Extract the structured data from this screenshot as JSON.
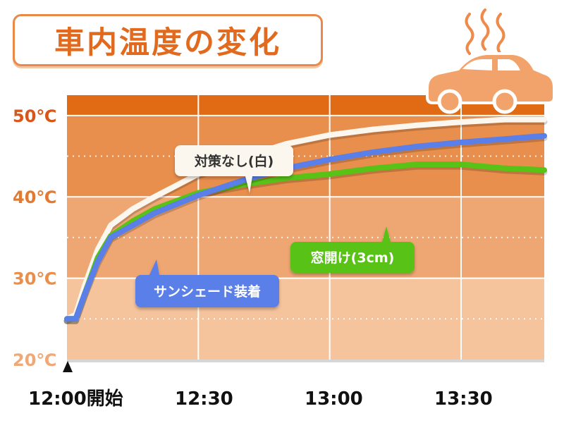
{
  "title": "車内温度の変化",
  "chart_data": {
    "type": "line",
    "ylim": [
      20,
      52.5
    ],
    "y_ticks": [
      20,
      30,
      40,
      50
    ],
    "y_tick_labels": [
      "20℃",
      "30℃",
      "40℃",
      "50℃"
    ],
    "y_band_colors": [
      "#f5c49d",
      "#eea672",
      "#e98f4d",
      "#e16a14"
    ],
    "x_ticks": [
      0,
      30,
      60,
      90
    ],
    "x_tick_labels": [
      "12:00開始",
      "12:30",
      "13:00",
      "13:30"
    ],
    "xlim": [
      0,
      109
    ],
    "grid": true,
    "series": [
      {
        "name": "対策なし(白)",
        "color": "#fbf7ee",
        "x": [
          0,
          2,
          4,
          7,
          10,
          15,
          20,
          30,
          40,
          50,
          60,
          70,
          80,
          90,
          100,
          109
        ],
        "y": [
          25,
          25.5,
          29,
          33.5,
          36.5,
          38.5,
          40,
          42.8,
          44.8,
          46.5,
          47.6,
          48.3,
          48.8,
          49.2,
          49.5,
          49.5
        ]
      },
      {
        "name": "サンシェード装着",
        "color": "#5a7fe8",
        "x": [
          0,
          2,
          4,
          7,
          10,
          15,
          20,
          30,
          40,
          50,
          60,
          70,
          80,
          90,
          100,
          109
        ],
        "y": [
          25,
          25,
          28,
          32,
          35,
          36.5,
          38,
          40.2,
          42,
          43.5,
          44.6,
          45.5,
          46.2,
          46.7,
          47.1,
          47.5
        ]
      },
      {
        "name": "窓開け(3cm)",
        "color": "#58c217",
        "x": [
          0,
          2,
          4,
          7,
          10,
          15,
          20,
          30,
          40,
          50,
          60,
          70,
          80,
          90,
          100,
          109
        ],
        "y": [
          25,
          25,
          28,
          32.5,
          35.2,
          37,
          38.5,
          40.5,
          41.5,
          42.3,
          42.8,
          43.5,
          44,
          44,
          43.5,
          43.3
        ]
      }
    ],
    "callouts": [
      {
        "text": "対策なし(白)",
        "bg": "#fbf7ee",
        "fg": "#333333"
      },
      {
        "text": "サンシェード装着",
        "bg": "#5a7fe8",
        "fg": "#ffffff"
      },
      {
        "text": "窓開け(3cm)",
        "bg": "#58c217",
        "fg": "#ffffff"
      }
    ]
  },
  "colors": {
    "title": "#e26a1e",
    "title_border": "#e8894a",
    "car": "#f2a36b",
    "steam": "#ee8a4a"
  },
  "icons": [
    "car-icon",
    "steam-icon",
    "start-marker-icon"
  ]
}
